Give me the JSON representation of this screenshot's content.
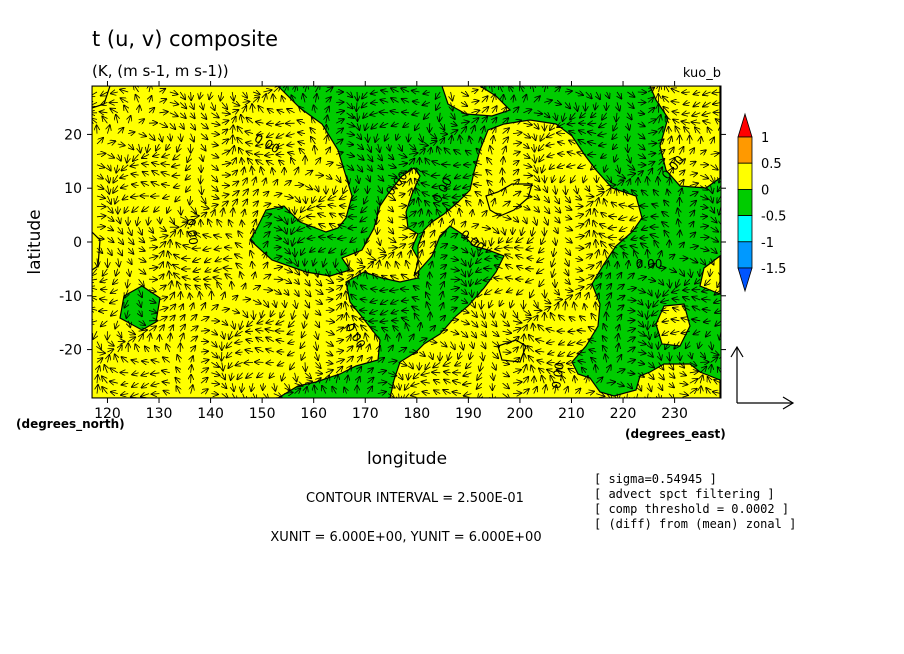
{
  "chart_data": {
    "type": "contour-vector",
    "title": "t (u, v) composite",
    "subtitle": "(K, (m s-1, m s-1))",
    "case_label": "kuo_b",
    "xlabel": "longitude",
    "ylabel": "latitude",
    "x_unit_label": "(degrees_east)",
    "y_unit_label": "(degrees_north)",
    "xlim": [
      117,
      239
    ],
    "ylim": [
      -29,
      29
    ],
    "x_ticks": [
      120,
      130,
      140,
      150,
      160,
      170,
      180,
      190,
      200,
      210,
      220,
      230
    ],
    "y_ticks": [
      20,
      10,
      0,
      -10,
      -20
    ],
    "contour_level_label": "0.00",
    "colorbar": {
      "labels": [
        "1",
        "0.5",
        "0",
        "-0.5",
        "-1",
        "-1.5"
      ],
      "colors": [
        "#ff0000",
        "#ff9900",
        "#ffff00",
        "#00cc00",
        "#00ffff",
        "#0099ff",
        "#0055ff"
      ]
    },
    "fill_colors": {
      "positive": "#ffff00",
      "negative": "#00cc00"
    },
    "footer": {
      "contour_interval": "CONTOUR INTERVAL = 2.500E-01",
      "units": "XUNIT = 6.000E+00, YUNIT = 6.000E+00"
    },
    "notes": [
      "[ sigma=0.54945 ]",
      "[ advect spct filtering ]",
      "[ comp threshold = 0.0002 ]",
      "[ (diff) from (mean) zonal ]"
    ]
  }
}
